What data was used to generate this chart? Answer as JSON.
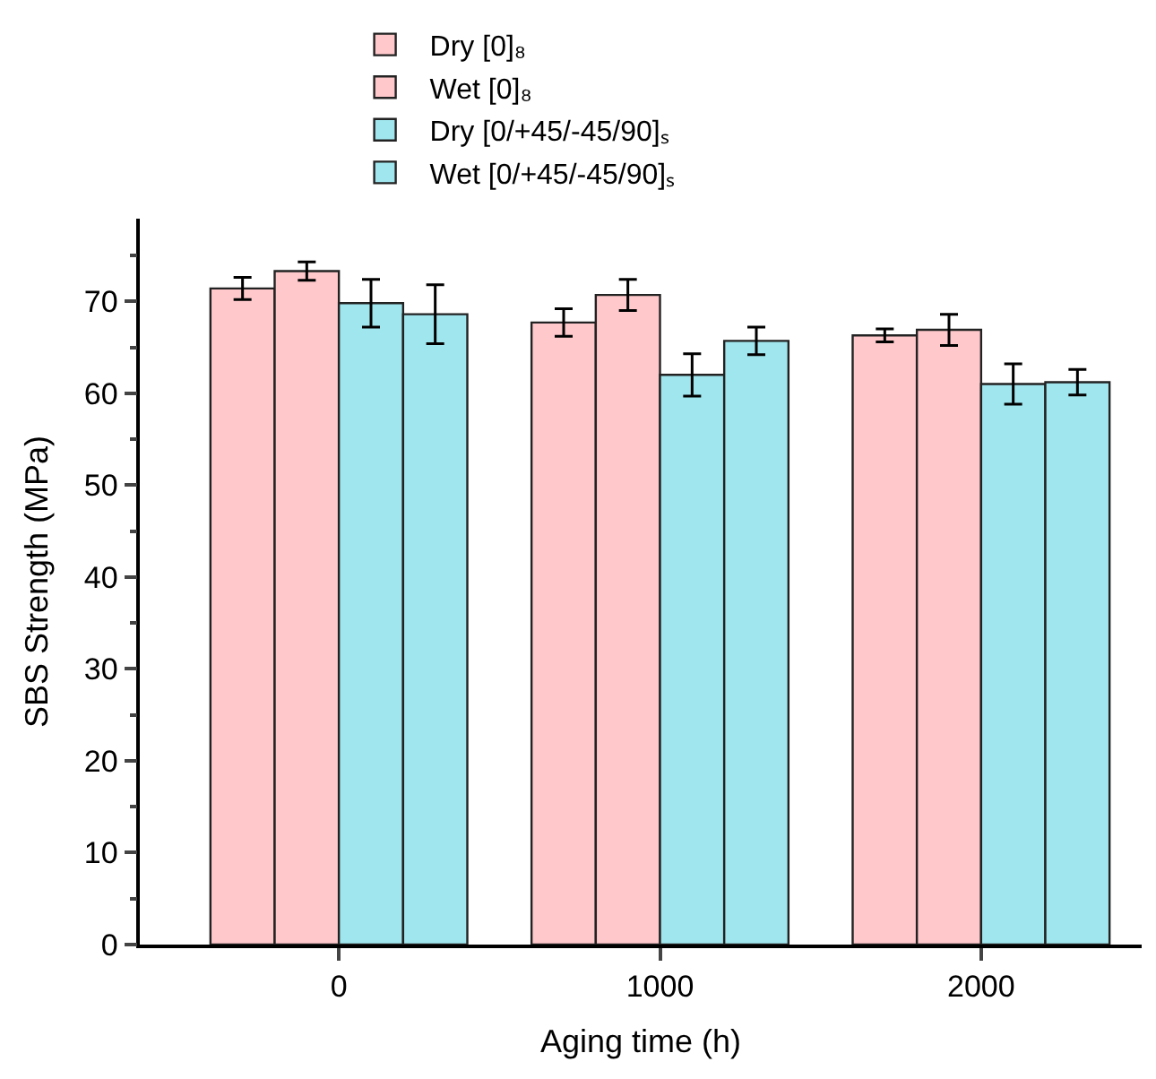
{
  "chart_data": {
    "type": "bar",
    "xlabel": "Aging time (h)",
    "ylabel": "SBS Strength (MPa)",
    "categories": [
      "0",
      "1000",
      "2000"
    ],
    "series": [
      {
        "name": "Dry [0]₈",
        "color": "#ffc8cb",
        "values": [
          71.4,
          67.7,
          66.3
        ],
        "errors": [
          1.2,
          1.5,
          0.7
        ]
      },
      {
        "name": "Wet [0]₈",
        "color": "#ffc8cb",
        "values": [
          73.3,
          70.7,
          66.9
        ],
        "errors": [
          1.0,
          1.7,
          1.7
        ]
      },
      {
        "name": "Dry [0/+45/-45/90]ₛ",
        "color": "#a0e6ee",
        "values": [
          69.8,
          62.0,
          61.0
        ],
        "errors": [
          2.6,
          2.3,
          2.2
        ]
      },
      {
        "name": "Wet [0/+45/-45/90]ₛ",
        "color": "#a0e6ee",
        "values": [
          68.6,
          65.7,
          61.2
        ],
        "errors": [
          3.2,
          1.5,
          1.4
        ]
      }
    ],
    "ylim": [
      0,
      79
    ],
    "yticks": [
      0,
      10,
      20,
      30,
      40,
      50,
      60,
      70
    ],
    "legend": "top"
  }
}
